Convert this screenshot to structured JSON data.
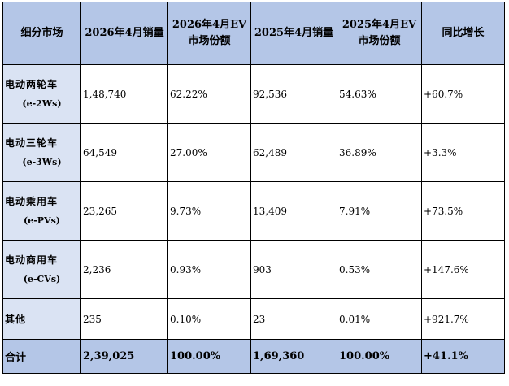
{
  "table": {
    "headers": [
      [
        "细分市场"
      ],
      [
        "2026年4月销量"
      ],
      [
        "2026年4月EV",
        "市场份额"
      ],
      [
        "2025年4月销量"
      ],
      [
        "2025年4月EV",
        "市场份额"
      ],
      [
        "同比增长"
      ]
    ],
    "rows": [
      {
        "segment": "电动两轮车",
        "code": "(e-2Ws)",
        "sales_2026": "1,48,740",
        "share_2026": "62.22%",
        "sales_2025": "92,536",
        "share_2025": "54.63%",
        "yoy": "+60.7%"
      },
      {
        "segment": "电动三轮车",
        "code": "(e-3Ws)",
        "sales_2026": "64,549",
        "share_2026": "27.00%",
        "sales_2025": "62,489",
        "share_2025": "36.89%",
        "yoy": "+3.3%"
      },
      {
        "segment": "电动乘用车",
        "code": "(e-PVs)",
        "sales_2026": "23,265",
        "share_2026": "9.73%",
        "sales_2025": "13,409",
        "share_2025": "7.91%",
        "yoy": "+73.5%"
      },
      {
        "segment": "电动商用车",
        "code": "(e-CVs)",
        "sales_2026": "2,236",
        "share_2026": "0.93%",
        "sales_2025": "903",
        "share_2025": "0.53%",
        "yoy": "+147.6%"
      },
      {
        "segment": "其他",
        "code": "",
        "sales_2026": "235",
        "share_2026": "0.10%",
        "sales_2025": "23",
        "share_2025": "0.01%",
        "yoy": "+921.7%"
      }
    ],
    "total": {
      "segment": "合计",
      "sales_2026": "2,39,025",
      "share_2026": "100.00%",
      "sales_2025": "1,69,360",
      "share_2025": "100.00%",
      "yoy": "+41.1%"
    }
  }
}
